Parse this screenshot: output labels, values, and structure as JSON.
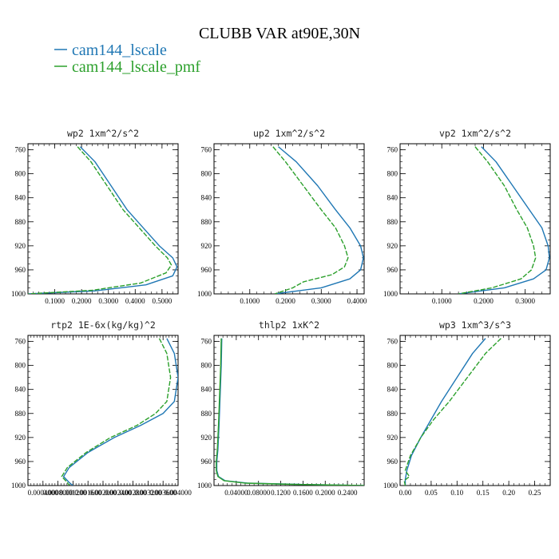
{
  "figure": {
    "title": "CLUBB VAR at90E,30N",
    "legend": [
      {
        "label": "cam144_lscale",
        "color": "#1f77b4"
      },
      {
        "label": "cam144_lscale_pmf",
        "color": "#2ca02c"
      }
    ]
  },
  "chart_data": [
    {
      "type": "line",
      "title": "wp2  1xm^2/s^2",
      "xlim": [
        0,
        0.56
      ],
      "ylim": [
        1000,
        750
      ],
      "y_inverted": true,
      "xticks": [
        0.1,
        0.2,
        0.3,
        0.4,
        0.5
      ],
      "xtick_labels": [
        "0.1000",
        "0.2000",
        "0.3000",
        "0.4000",
        "0.5000"
      ],
      "yticks": [
        760,
        800,
        840,
        880,
        920,
        960,
        1000
      ],
      "ytick_labels": [
        "760",
        "800",
        "840",
        "880",
        "920",
        "960",
        "1000"
      ],
      "series": [
        {
          "name": "cam144_lscale",
          "color": "#1f77b4",
          "dash": "",
          "x": [
            0.195,
            0.25,
            0.31,
            0.37,
            0.43,
            0.49,
            0.54,
            0.556,
            0.54,
            0.44,
            0.25,
            0.0
          ],
          "y": [
            755,
            780,
            820,
            860,
            890,
            920,
            940,
            955,
            970,
            985,
            995,
            1000
          ]
        },
        {
          "name": "cam144_lscale_pmf",
          "color": "#2ca02c",
          "dash": "6,2",
          "x": [
            0.185,
            0.235,
            0.295,
            0.355,
            0.415,
            0.475,
            0.52,
            0.535,
            0.515,
            0.42,
            0.24,
            0.0
          ],
          "y": [
            755,
            780,
            820,
            860,
            890,
            920,
            940,
            952,
            965,
            982,
            994,
            1000
          ]
        }
      ]
    },
    {
      "type": "line",
      "title": "up2  1xm^2/s^2",
      "xlim": [
        0,
        0.42
      ],
      "ylim": [
        1000,
        750
      ],
      "y_inverted": true,
      "xticks": [
        0.1,
        0.2,
        0.3,
        0.4
      ],
      "xtick_labels": [
        "0.1000",
        "0.2000",
        "0.3000",
        "0.4000"
      ],
      "yticks": [
        760,
        800,
        840,
        880,
        920,
        960,
        1000
      ],
      "ytick_labels": [
        "760",
        "800",
        "840",
        "880",
        "920",
        "960",
        "1000"
      ],
      "series": [
        {
          "name": "cam144_lscale",
          "color": "#1f77b4",
          "dash": "",
          "x": [
            0.18,
            0.23,
            0.29,
            0.34,
            0.38,
            0.41,
            0.418,
            0.41,
            0.38,
            0.3,
            0.17
          ],
          "y": [
            755,
            780,
            820,
            860,
            890,
            920,
            940,
            960,
            975,
            990,
            1000
          ]
        },
        {
          "name": "cam144_lscale_pmf",
          "color": "#2ca02c",
          "dash": "6,2",
          "x": [
            0.165,
            0.2,
            0.25,
            0.3,
            0.34,
            0.365,
            0.375,
            0.365,
            0.33,
            0.25,
            0.22,
            0.17
          ],
          "y": [
            755,
            780,
            820,
            860,
            890,
            920,
            940,
            955,
            968,
            980,
            990,
            1000
          ]
        }
      ]
    },
    {
      "type": "line",
      "title": "vp2  1xm^2/s^2",
      "xlim": [
        0,
        0.36
      ],
      "ylim": [
        1000,
        750
      ],
      "y_inverted": true,
      "xticks": [
        0.1,
        0.2,
        0.3
      ],
      "xtick_labels": [
        "0.1000",
        "0.2000",
        "0.3000"
      ],
      "yticks": [
        760,
        800,
        840,
        880,
        920,
        960,
        1000
      ],
      "ytick_labels": [
        "760",
        "800",
        "840",
        "880",
        "920",
        "960",
        "1000"
      ],
      "series": [
        {
          "name": "cam144_lscale",
          "color": "#1f77b4",
          "dash": "",
          "x": [
            0.195,
            0.23,
            0.27,
            0.31,
            0.34,
            0.355,
            0.358,
            0.35,
            0.32,
            0.25,
            0.14
          ],
          "y": [
            755,
            780,
            820,
            860,
            890,
            920,
            940,
            960,
            975,
            990,
            1000
          ]
        },
        {
          "name": "cam144_lscale_pmf",
          "color": "#2ca02c",
          "dash": "6,2",
          "x": [
            0.18,
            0.21,
            0.25,
            0.28,
            0.305,
            0.32,
            0.325,
            0.315,
            0.29,
            0.22,
            0.14
          ],
          "y": [
            755,
            780,
            820,
            860,
            890,
            920,
            940,
            960,
            975,
            990,
            1000
          ]
        }
      ]
    },
    {
      "type": "line",
      "title": "rtp2  1E-6x(kg/kg)^2",
      "xlim": [
        0,
        0.004
      ],
      "ylim": [
        1000,
        750
      ],
      "y_inverted": true,
      "xticks": [
        0.0004,
        0.0008,
        0.0012,
        0.0016,
        0.002,
        0.0024,
        0.0028,
        0.0032,
        0.0036,
        0.004
      ],
      "xtick_labels": [
        "0.0004000",
        "0.0008000",
        "0.001200",
        "0.001600",
        "0.002000",
        "0.002400",
        "0.002800",
        "0.003200",
        "0.003600",
        "0.004000"
      ],
      "yticks": [
        760,
        800,
        840,
        880,
        920,
        960,
        1000
      ],
      "ytick_labels": [
        "760",
        "800",
        "840",
        "880",
        "920",
        "960",
        "1000"
      ],
      "series": [
        {
          "name": "cam144_lscale",
          "color": "#1f77b4",
          "dash": "",
          "x": [
            0.0037,
            0.0039,
            0.004,
            0.0039,
            0.0036,
            0.003,
            0.0023,
            0.0016,
            0.0011,
            0.00095,
            0.0011,
            0.0012
          ],
          "y": [
            755,
            780,
            820,
            860,
            880,
            900,
            920,
            945,
            970,
            985,
            995,
            1000
          ]
        },
        {
          "name": "cam144_lscale_pmf",
          "color": "#2ca02c",
          "dash": "6,2",
          "x": [
            0.0035,
            0.0037,
            0.0038,
            0.0037,
            0.0034,
            0.0029,
            0.0022,
            0.00155,
            0.00105,
            0.0009,
            0.00105,
            0.0011
          ],
          "y": [
            755,
            780,
            820,
            860,
            880,
            900,
            920,
            945,
            970,
            985,
            995,
            1000
          ]
        }
      ]
    },
    {
      "type": "line",
      "title": "thlp2  1xK^2",
      "xlim": [
        0,
        0.27
      ],
      "ylim": [
        1000,
        750
      ],
      "y_inverted": true,
      "xticks": [
        0.04,
        0.08,
        0.12,
        0.16,
        0.2,
        0.24
      ],
      "xtick_labels": [
        "0.04000",
        "0.08000",
        "0.1200",
        "0.1600",
        "0.2000",
        "0.2400"
      ],
      "yticks": [
        760,
        800,
        840,
        880,
        920,
        960,
        1000
      ],
      "ytick_labels": [
        "760",
        "800",
        "840",
        "880",
        "920",
        "960",
        "1000"
      ],
      "series": [
        {
          "name": "cam144_lscale",
          "color": "#1f77b4",
          "dash": "",
          "x": [
            0.014,
            0.013,
            0.011,
            0.009,
            0.007,
            0.005,
            0.005,
            0.008,
            0.02,
            0.06,
            0.15,
            0.27
          ],
          "y": [
            755,
            800,
            850,
            900,
            940,
            960,
            975,
            985,
            992,
            996,
            998,
            1000
          ]
        },
        {
          "name": "cam144_lscale_pmf",
          "color": "#2ca02c",
          "dash": "",
          "x": [
            0.013,
            0.012,
            0.01,
            0.008,
            0.006,
            0.004,
            0.004,
            0.007,
            0.018,
            0.055,
            0.14,
            0.27
          ],
          "y": [
            755,
            800,
            850,
            900,
            940,
            960,
            975,
            985,
            992,
            996,
            998,
            1000
          ]
        }
      ]
    },
    {
      "type": "line",
      "title": "wp3  1xm^3/s^3",
      "xlim": [
        -0.01,
        0.28
      ],
      "ylim": [
        1000,
        750
      ],
      "y_inverted": true,
      "xticks": [
        0.0,
        0.05,
        0.1,
        0.15,
        0.2,
        0.25
      ],
      "xtick_labels": [
        "0.00",
        "0.05",
        "0.10",
        "0.15",
        "0.20",
        "0.25"
      ],
      "yticks": [
        760,
        800,
        840,
        880,
        920,
        960,
        1000
      ],
      "ytick_labels": [
        "760",
        "800",
        "840",
        "880",
        "920",
        "960",
        "1000"
      ],
      "series": [
        {
          "name": "cam144_lscale",
          "color": "#1f77b4",
          "dash": "",
          "x": [
            0.155,
            0.13,
            0.1,
            0.07,
            0.05,
            0.03,
            0.012,
            0.003,
            0.0,
            0.0
          ],
          "y": [
            755,
            780,
            820,
            860,
            890,
            920,
            950,
            975,
            990,
            1000
          ]
        },
        {
          "name": "cam144_lscale_pmf",
          "color": "#2ca02c",
          "dash": "6,2",
          "x": [
            0.185,
            0.155,
            0.12,
            0.085,
            0.055,
            0.03,
            0.01,
            0.0,
            0.008,
            -0.002,
            0.0
          ],
          "y": [
            755,
            780,
            820,
            860,
            890,
            920,
            950,
            975,
            985,
            992,
            1000
          ]
        }
      ]
    }
  ]
}
